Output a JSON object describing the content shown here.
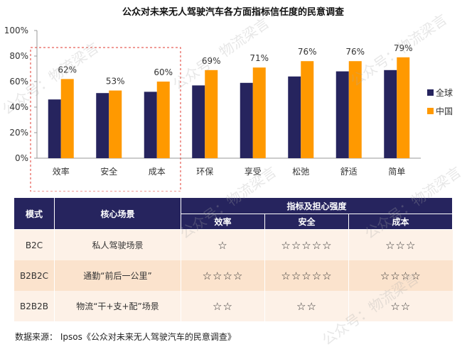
{
  "chart_data": {
    "type": "bar",
    "title": "公众对未来无人驾驶汽车各方面指标信任度的民意调查",
    "categories": [
      "效率",
      "安全",
      "成本",
      "环保",
      "享受",
      "松弛",
      "舒适",
      "简单"
    ],
    "series": [
      {
        "name": "全球",
        "color": "#26245e",
        "values": [
          46,
          51,
          52,
          57,
          59,
          64,
          68,
          69
        ]
      },
      {
        "name": "中国",
        "color": "#ff9900",
        "values": [
          62,
          53,
          60,
          69,
          71,
          76,
          76,
          79
        ]
      }
    ],
    "data_labels": [
      "62%",
      "53%",
      "60%",
      "69%",
      "71%",
      "76%",
      "76%",
      "79%"
    ],
    "ylim": [
      0,
      100
    ],
    "yticks": [
      "0%",
      "20%",
      "40%",
      "60%",
      "80%",
      "100%"
    ],
    "highlight_categories": [
      "效率",
      "安全",
      "成本"
    ],
    "legend_position": "right"
  },
  "table": {
    "header": {
      "mode": "模式",
      "scene": "核心场景",
      "group": "指标及担心强度",
      "efficiency": "效率",
      "safety": "安全",
      "cost": "成本"
    },
    "rows": [
      {
        "mode": "B2C",
        "scene": "私人驾驶场景",
        "efficiency": "☆",
        "safety": "☆☆☆☆☆",
        "cost": "☆☆☆"
      },
      {
        "mode": "B2B2C",
        "scene": "通勤“前后一公里”",
        "efficiency": "☆☆☆☆",
        "safety": "☆☆☆☆☆",
        "cost": "☆☆☆☆"
      },
      {
        "mode": "B2B2B",
        "scene": "物流“干+支+配”场景",
        "efficiency": "☆☆",
        "safety": "☆☆",
        "cost": "☆☆"
      }
    ]
  },
  "source": "数据来源： Ipsos《公众对未来无人驾驶汽车的民意调查》",
  "watermark": "公众号：物流梁言"
}
